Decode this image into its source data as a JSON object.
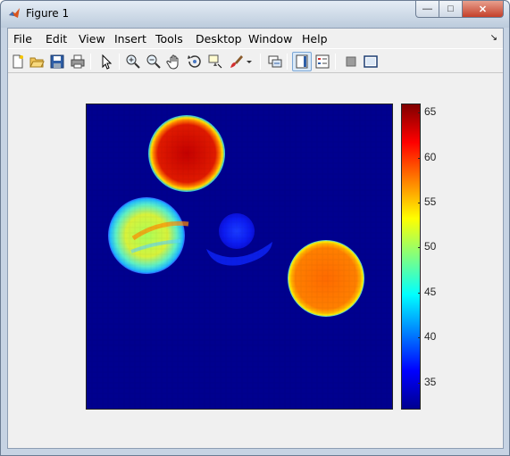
{
  "window": {
    "title": "Figure 1",
    "buttons": {
      "minimize": "—",
      "maximize": "□",
      "close": "✕"
    }
  },
  "menu": {
    "items": [
      "File",
      "Edit",
      "View",
      "Insert",
      "Tools",
      "Desktop",
      "Window",
      "Help"
    ],
    "dock_arrow": "↘"
  },
  "toolbar": {
    "icons": [
      "new-figure-icon",
      "open-file-icon",
      "save-icon",
      "print-icon",
      "pointer-icon",
      "zoom-in-icon",
      "zoom-out-icon",
      "pan-icon",
      "rotate-3d-icon",
      "data-cursor-icon",
      "brush-icon",
      "brush-dropdown-icon",
      "link-plot-icon",
      "colorbar-icon",
      "legend-icon",
      "hide-plot-tools-icon",
      "show-plot-tools-icon"
    ],
    "pressed": "colorbar-icon"
  },
  "chart_data": {
    "type": "heatmap",
    "title": "",
    "xlabel": "",
    "ylabel": "",
    "colormap": "jet",
    "clim": [
      32,
      66
    ],
    "colorbar_ticks": [
      35,
      40,
      45,
      50,
      55,
      60,
      65
    ],
    "background_value": 32,
    "regions": [
      {
        "name": "top disk",
        "approx_value": 63,
        "edge_value": 48
      },
      {
        "name": "left disk",
        "approx_value": 48,
        "edge_value": 45
      },
      {
        "name": "center object",
        "approx_value": 37,
        "edge_value": 36
      },
      {
        "name": "right disk",
        "approx_value": 57,
        "edge_value": 50
      }
    ]
  }
}
